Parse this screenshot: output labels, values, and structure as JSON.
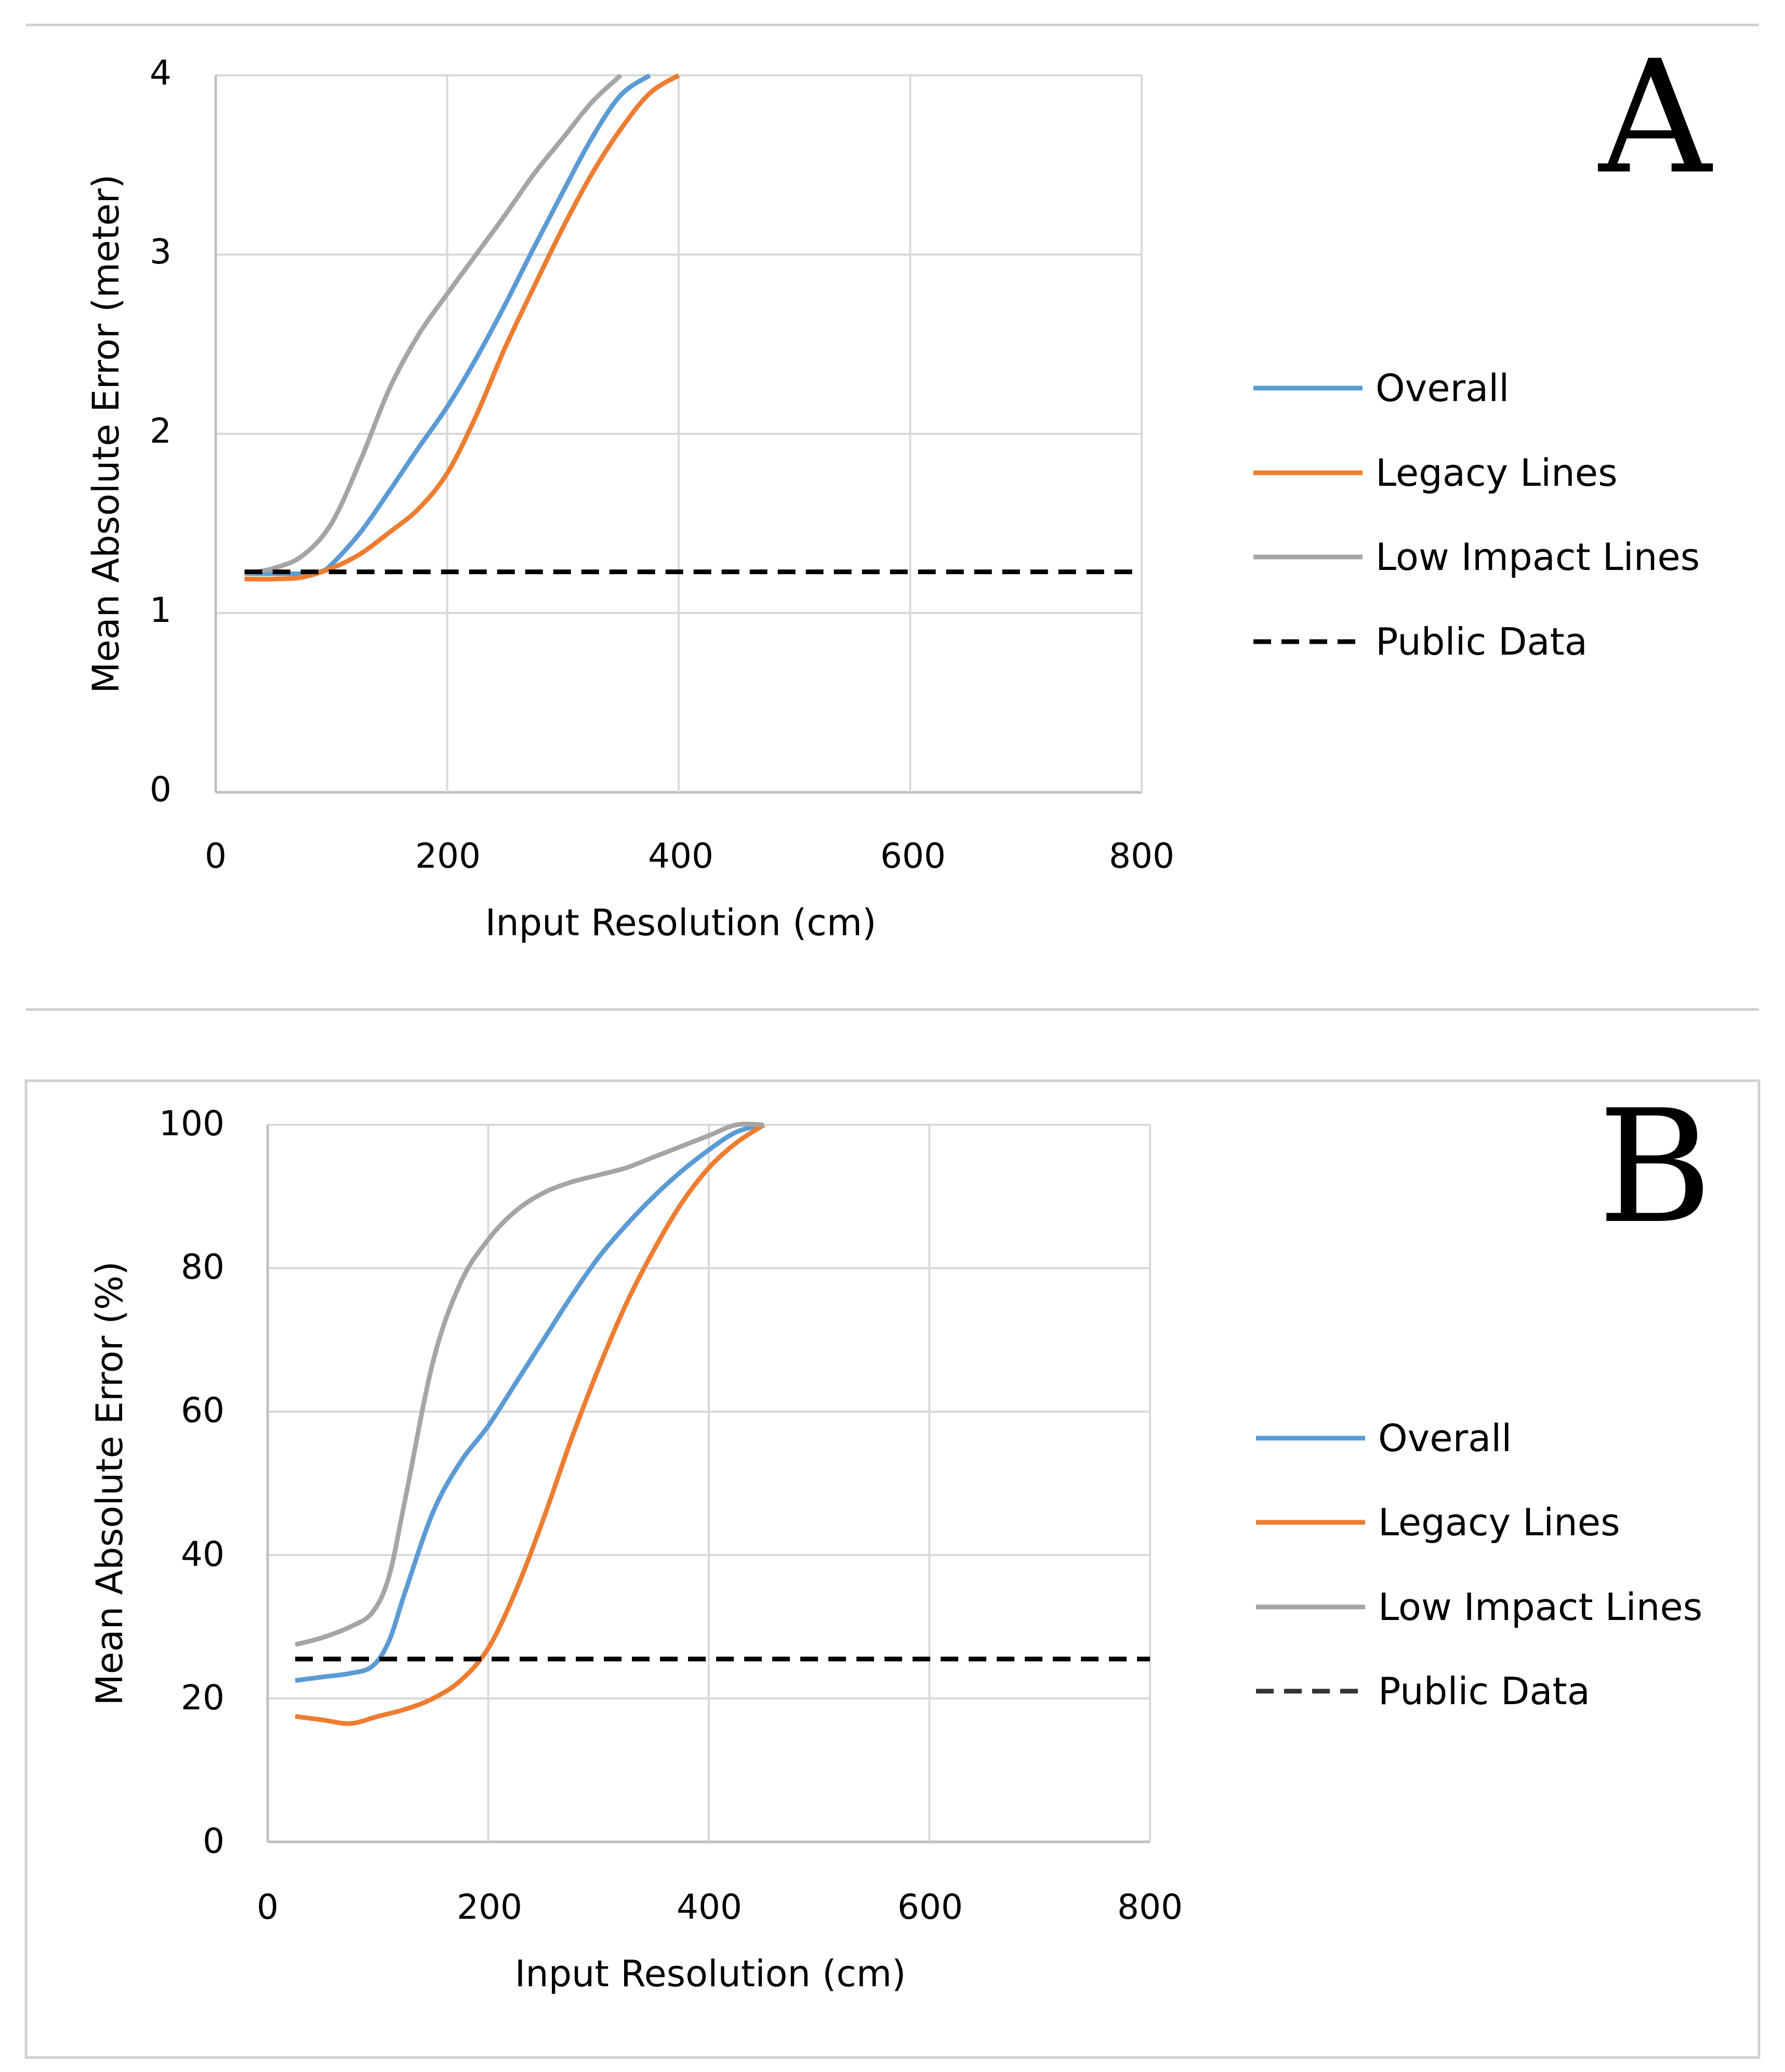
{
  "chart_data": [
    {
      "type": "line",
      "panel_label": "A",
      "title": "",
      "xlabel": "Input Resolution (cm)",
      "ylabel": "Mean Absolute Error (meter)",
      "xlim": [
        0,
        800
      ],
      "ylim": [
        0,
        4
      ],
      "xticks": [
        "0",
        "200",
        "400",
        "600",
        "800"
      ],
      "yticks": [
        "0",
        "1",
        "2",
        "3",
        "4"
      ],
      "grid": true,
      "legend_position": "right",
      "series": [
        {
          "name": "Overall",
          "color": "#5b9bd5",
          "dash": false,
          "x": [
            25,
            50,
            75,
            90,
            100,
            125,
            150,
            175,
            200,
            225,
            250,
            275,
            300,
            325,
            350,
            375
          ],
          "y": [
            1.22,
            1.22,
            1.22,
            1.23,
            1.27,
            1.45,
            1.68,
            1.92,
            2.15,
            2.42,
            2.72,
            3.04,
            3.35,
            3.65,
            3.89,
            4.0
          ]
        },
        {
          "name": "Legacy Lines",
          "color": "#ed7d31",
          "dash": false,
          "x": [
            25,
            50,
            75,
            100,
            125,
            150,
            175,
            200,
            225,
            250,
            275,
            300,
            325,
            350,
            375,
            400
          ],
          "y": [
            1.19,
            1.19,
            1.2,
            1.25,
            1.33,
            1.45,
            1.58,
            1.78,
            2.1,
            2.48,
            2.82,
            3.15,
            3.45,
            3.7,
            3.9,
            4.0
          ]
        },
        {
          "name": "Low Impact Lines",
          "color": "#a5a5a5",
          "dash": false,
          "x": [
            25,
            50,
            75,
            100,
            125,
            150,
            175,
            200,
            225,
            250,
            275,
            300,
            325,
            350
          ],
          "y": [
            1.22,
            1.25,
            1.32,
            1.5,
            1.85,
            2.25,
            2.55,
            2.78,
            3.0,
            3.22,
            3.45,
            3.65,
            3.85,
            4.0
          ]
        },
        {
          "name": "Public Data",
          "color": "#000000",
          "dash": true,
          "x": [
            25,
            800
          ],
          "y": [
            1.23,
            1.23
          ]
        }
      ]
    },
    {
      "type": "line",
      "panel_label": "B",
      "title": "",
      "xlabel": "Input Resolution (cm)",
      "ylabel": "Mean Absolute Error (%)",
      "xlim": [
        0,
        800
      ],
      "ylim": [
        0,
        100
      ],
      "xticks": [
        "0",
        "200",
        "400",
        "600",
        "800"
      ],
      "yticks": [
        "0",
        "20",
        "40",
        "60",
        "80",
        "100"
      ],
      "grid": true,
      "legend_position": "right",
      "series": [
        {
          "name": "Overall",
          "color": "#5b9bd5",
          "dash": false,
          "x": [
            25,
            50,
            75,
            95,
            110,
            125,
            150,
            175,
            200,
            225,
            250,
            275,
            300,
            325,
            350,
            375,
            400,
            425,
            450
          ],
          "y": [
            22.5,
            23,
            23.5,
            24.5,
            28,
            35,
            46,
            53,
            58,
            64,
            70,
            76,
            81.5,
            86,
            90,
            93.5,
            96.5,
            99,
            100
          ]
        },
        {
          "name": "Legacy Lines",
          "color": "#ed7d31",
          "dash": false,
          "x": [
            25,
            50,
            75,
            100,
            125,
            150,
            175,
            200,
            225,
            250,
            275,
            300,
            325,
            350,
            375,
            400,
            425,
            450
          ],
          "y": [
            17.5,
            17,
            16.5,
            17.5,
            18.5,
            20,
            22.5,
            27,
            35,
            45,
            56,
            66,
            75,
            82.5,
            89,
            94,
            97.5,
            100
          ]
        },
        {
          "name": "Low Impact Lines",
          "color": "#a5a5a5",
          "dash": false,
          "x": [
            25,
            50,
            75,
            95,
            110,
            125,
            150,
            175,
            200,
            225,
            250,
            275,
            300,
            325,
            350,
            375,
            400,
            425,
            450
          ],
          "y": [
            27.5,
            28.5,
            30,
            32,
            37,
            48,
            67,
            78,
            84,
            88,
            90.5,
            92,
            93,
            94,
            95.5,
            97,
            98.5,
            100,
            100
          ]
        },
        {
          "name": "Public Data",
          "color": "#000000",
          "dash": true,
          "x": [
            25,
            800
          ],
          "y": [
            25.5,
            25.5
          ]
        }
      ]
    }
  ]
}
